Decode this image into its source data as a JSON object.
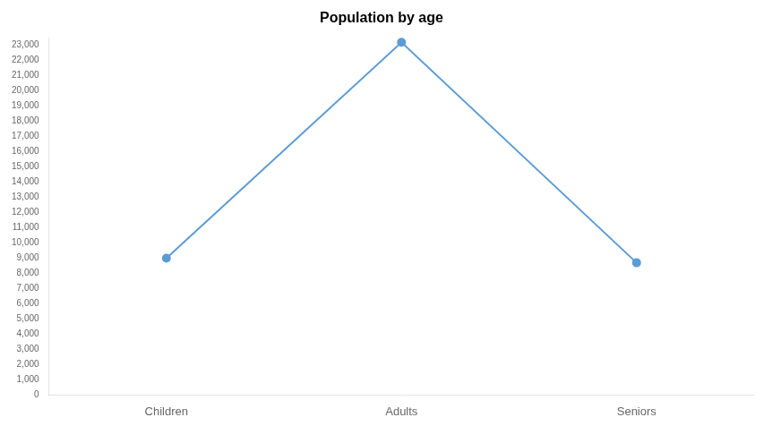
{
  "chart_data": {
    "type": "line",
    "title": "Population by age",
    "categories": [
      "Children",
      "Adults",
      "Seniors"
    ],
    "values": [
      9000,
      23200,
      8700
    ],
    "color": "#5B9BD5",
    "marker": "circle",
    "ylim": [
      0,
      23500
    ],
    "yticks": [
      0,
      {
        "value": 1000,
        "label": "1,000"
      },
      {
        "value": 2000,
        "label": "2,000"
      },
      {
        "value": 3000,
        "label": "3,000"
      },
      {
        "value": 4000,
        "label": "4,000"
      },
      {
        "value": 5000,
        "label": "5,000"
      },
      {
        "value": 6000,
        "label": "6,000"
      },
      {
        "value": 7000,
        "label": "7,000"
      },
      {
        "value": 8000,
        "label": "8,000"
      },
      {
        "value": 9000,
        "label": "9,000"
      },
      {
        "value": 10000,
        "label": "10,000"
      },
      {
        "value": 11000,
        "label": "11,000"
      },
      {
        "value": 12000,
        "label": "12,000"
      },
      {
        "value": 13000,
        "label": "13,000"
      },
      {
        "value": 14000,
        "label": "14,000"
      },
      {
        "value": 15000,
        "label": "15,000"
      },
      {
        "value": 16000,
        "label": "16,000"
      },
      {
        "value": 17000,
        "label": "17,000"
      },
      {
        "value": 18000,
        "label": "18,000"
      },
      {
        "value": 19000,
        "label": "19,000"
      },
      {
        "value": 20000,
        "label": "20,000"
      },
      {
        "value": 21000,
        "label": "21,000"
      },
      {
        "value": 22000,
        "label": "22,000"
      },
      {
        "value": 23000,
        "label": "23,000"
      }
    ],
    "grid": false
  }
}
